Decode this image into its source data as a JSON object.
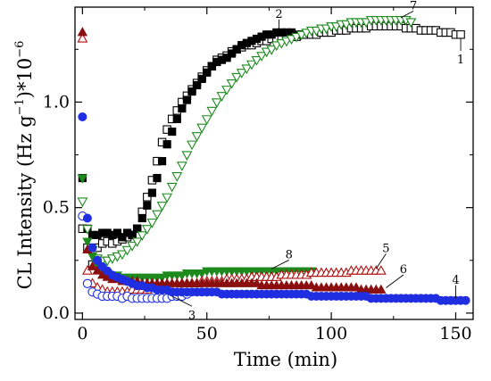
{
  "chart_data": {
    "type": "scatter",
    "title": "",
    "xlabel": "Time (min)",
    "ylabel": "CL Intensity (Hz g",
    "ylabel_sup": "−1",
    "ylabel_tail": ")*10",
    "ylabel_exp": "−6",
    "xlim": [
      -3,
      157
    ],
    "ylim": [
      -0.03,
      1.45
    ],
    "x_ticks": [
      0,
      50,
      100,
      150
    ],
    "x_tick_labels": [
      "0",
      "50",
      "100",
      "150"
    ],
    "y_ticks": [
      0.0,
      0.5,
      1.0
    ],
    "y_tick_labels": [
      "0.0",
      "0.5",
      "1.0"
    ],
    "grid": false,
    "legend": "none",
    "series": [
      {
        "name": "1",
        "marker": "square",
        "filled": false,
        "color": "#000000",
        "x": [
          0,
          2,
          4,
          6,
          8,
          10,
          12,
          14,
          16,
          18,
          20,
          22,
          24,
          26,
          28,
          30,
          32,
          34,
          36,
          38,
          40,
          42,
          44,
          46,
          48,
          50,
          52,
          54,
          56,
          58,
          60,
          62,
          64,
          66,
          68,
          70,
          72,
          74,
          76,
          78,
          80,
          82,
          84,
          86,
          88,
          90,
          92,
          94,
          96,
          98,
          100,
          102,
          104,
          106,
          108,
          110,
          112,
          114,
          116,
          118,
          120,
          122,
          124,
          126,
          128,
          130,
          132,
          134,
          136,
          138,
          140,
          142,
          144,
          146,
          148,
          150,
          152
        ],
        "y": [
          0.4,
          0.31,
          0.23,
          0.31,
          0.33,
          0.34,
          0.33,
          0.34,
          0.35,
          0.36,
          0.37,
          0.4,
          0.48,
          0.55,
          0.63,
          0.72,
          0.81,
          0.87,
          0.92,
          0.96,
          1.0,
          1.03,
          1.06,
          1.09,
          1.12,
          1.15,
          1.17,
          1.2,
          1.21,
          1.22,
          1.24,
          1.25,
          1.26,
          1.27,
          1.27,
          1.28,
          1.29,
          1.29,
          1.3,
          1.3,
          1.3,
          1.31,
          1.31,
          1.31,
          1.32,
          1.32,
          1.32,
          1.32,
          1.33,
          1.33,
          1.33,
          1.34,
          1.34,
          1.34,
          1.35,
          1.35,
          1.35,
          1.35,
          1.36,
          1.36,
          1.36,
          1.36,
          1.36,
          1.36,
          1.36,
          1.35,
          1.35,
          1.35,
          1.34,
          1.34,
          1.34,
          1.34,
          1.33,
          1.33,
          1.33,
          1.32,
          1.32
        ]
      },
      {
        "name": "2",
        "marker": "square",
        "filled": true,
        "color": "#000000",
        "x": [
          0,
          2,
          4,
          6,
          8,
          10,
          12,
          14,
          16,
          18,
          20,
          22,
          24,
          26,
          28,
          30,
          32,
          34,
          36,
          38,
          40,
          42,
          44,
          46,
          48,
          50,
          52,
          54,
          56,
          58,
          60,
          62,
          64,
          66,
          68,
          70,
          72,
          74,
          76,
          78,
          80,
          82,
          84,
          86
        ],
        "y": [
          0.64,
          0.4,
          0.37,
          0.37,
          0.38,
          0.38,
          0.37,
          0.38,
          0.36,
          0.38,
          0.37,
          0.4,
          0.45,
          0.51,
          0.57,
          0.64,
          0.72,
          0.8,
          0.86,
          0.92,
          0.97,
          1.01,
          1.05,
          1.08,
          1.11,
          1.14,
          1.17,
          1.19,
          1.2,
          1.21,
          1.23,
          1.25,
          1.27,
          1.28,
          1.29,
          1.3,
          1.31,
          1.32,
          1.32,
          1.33,
          1.33,
          1.33,
          1.33,
          1.32
        ]
      },
      {
        "name": "3",
        "marker": "circle",
        "filled": false,
        "color": "#1f2ee0",
        "x": [
          0,
          2,
          4,
          6,
          8,
          10,
          12,
          14,
          16,
          18,
          20,
          22,
          24,
          26,
          28,
          30,
          32,
          34,
          36,
          38,
          40,
          42
        ],
        "y": [
          0.46,
          0.14,
          0.1,
          0.09,
          0.08,
          0.08,
          0.08,
          0.08,
          0.07,
          0.08,
          0.07,
          0.07,
          0.07,
          0.07,
          0.07,
          0.07,
          0.07,
          0.07,
          0.08,
          0.08,
          0.08,
          0.09
        ]
      },
      {
        "name": "4",
        "marker": "circle",
        "filled": true,
        "color": "#1f2ee0",
        "x": [
          0,
          2,
          4,
          6,
          8,
          10,
          12,
          14,
          16,
          18,
          20,
          22,
          24,
          26,
          28,
          30,
          32,
          34,
          36,
          38,
          40,
          42,
          44,
          46,
          48,
          50,
          52,
          54,
          56,
          58,
          60,
          62,
          64,
          66,
          68,
          70,
          72,
          74,
          76,
          78,
          80,
          82,
          84,
          86,
          88,
          90,
          92,
          94,
          96,
          98,
          100,
          102,
          104,
          106,
          108,
          110,
          112,
          114,
          116,
          118,
          120,
          122,
          124,
          126,
          128,
          130,
          132,
          134,
          136,
          138,
          140,
          142,
          144,
          146,
          148,
          150,
          152,
          154
        ],
        "y": [
          0.93,
          0.45,
          0.31,
          0.25,
          0.22,
          0.2,
          0.18,
          0.17,
          0.16,
          0.15,
          0.14,
          0.13,
          0.13,
          0.12,
          0.12,
          0.11,
          0.11,
          0.11,
          0.1,
          0.1,
          0.1,
          0.1,
          0.1,
          0.1,
          0.1,
          0.1,
          0.1,
          0.1,
          0.09,
          0.09,
          0.09,
          0.09,
          0.09,
          0.09,
          0.09,
          0.09,
          0.09,
          0.09,
          0.09,
          0.09,
          0.09,
          0.09,
          0.09,
          0.09,
          0.09,
          0.09,
          0.08,
          0.08,
          0.08,
          0.08,
          0.08,
          0.08,
          0.08,
          0.08,
          0.08,
          0.08,
          0.08,
          0.08,
          0.07,
          0.07,
          0.07,
          0.07,
          0.07,
          0.07,
          0.07,
          0.07,
          0.07,
          0.07,
          0.07,
          0.07,
          0.07,
          0.07,
          0.06,
          0.06,
          0.06,
          0.06,
          0.06,
          0.06
        ]
      },
      {
        "name": "5",
        "marker": "triangle-up",
        "filled": false,
        "color": "#b01010",
        "x": [
          0,
          2,
          4,
          6,
          8,
          10,
          12,
          14,
          16,
          18,
          20,
          22,
          24,
          26,
          28,
          30,
          32,
          34,
          36,
          38,
          40,
          42,
          44,
          46,
          48,
          50,
          52,
          54,
          56,
          58,
          60,
          62,
          64,
          66,
          68,
          70,
          72,
          74,
          76,
          78,
          80,
          82,
          84,
          86,
          88,
          90,
          92,
          94,
          96,
          98,
          100,
          102,
          104,
          106,
          108,
          110,
          112,
          114,
          116,
          118,
          120
        ],
        "y": [
          1.3,
          0.2,
          0.14,
          0.12,
          0.11,
          0.1,
          0.1,
          0.1,
          0.1,
          0.1,
          0.11,
          0.11,
          0.11,
          0.11,
          0.12,
          0.12,
          0.12,
          0.13,
          0.13,
          0.13,
          0.14,
          0.14,
          0.14,
          0.14,
          0.15,
          0.15,
          0.15,
          0.15,
          0.15,
          0.16,
          0.16,
          0.16,
          0.16,
          0.16,
          0.17,
          0.17,
          0.17,
          0.17,
          0.17,
          0.17,
          0.18,
          0.18,
          0.18,
          0.18,
          0.18,
          0.18,
          0.19,
          0.19,
          0.19,
          0.19,
          0.19,
          0.19,
          0.19,
          0.19,
          0.2,
          0.2,
          0.2,
          0.2,
          0.2,
          0.2,
          0.2
        ]
      },
      {
        "name": "6",
        "marker": "triangle-up",
        "filled": true,
        "color": "#8b0f0f",
        "x": [
          0,
          2,
          4,
          6,
          8,
          10,
          12,
          14,
          16,
          18,
          20,
          22,
          24,
          26,
          28,
          30,
          32,
          34,
          36,
          38,
          40,
          42,
          44,
          46,
          48,
          50,
          52,
          54,
          56,
          58,
          60,
          62,
          64,
          66,
          68,
          70,
          72,
          74,
          76,
          78,
          80,
          82,
          84,
          86,
          88,
          90,
          92,
          94,
          96,
          98,
          100,
          102,
          104,
          106,
          108,
          110,
          112,
          114,
          116,
          118,
          120
        ],
        "y": [
          1.33,
          0.3,
          0.22,
          0.2,
          0.18,
          0.17,
          0.16,
          0.16,
          0.15,
          0.15,
          0.15,
          0.15,
          0.14,
          0.14,
          0.14,
          0.14,
          0.14,
          0.14,
          0.14,
          0.14,
          0.14,
          0.14,
          0.14,
          0.14,
          0.14,
          0.14,
          0.14,
          0.14,
          0.14,
          0.14,
          0.14,
          0.14,
          0.14,
          0.14,
          0.14,
          0.14,
          0.13,
          0.13,
          0.13,
          0.13,
          0.13,
          0.13,
          0.13,
          0.13,
          0.13,
          0.13,
          0.13,
          0.12,
          0.12,
          0.12,
          0.12,
          0.12,
          0.12,
          0.12,
          0.12,
          0.12,
          0.11,
          0.11,
          0.11,
          0.11,
          0.11
        ]
      },
      {
        "name": "7",
        "marker": "triangle-down",
        "filled": false,
        "color": "#1e8a1e",
        "x": [
          0,
          2,
          4,
          6,
          8,
          10,
          12,
          14,
          16,
          18,
          20,
          22,
          24,
          26,
          28,
          30,
          32,
          34,
          36,
          38,
          40,
          42,
          44,
          46,
          48,
          50,
          52,
          54,
          56,
          58,
          60,
          62,
          64,
          66,
          68,
          70,
          72,
          74,
          76,
          78,
          80,
          82,
          84,
          86,
          88,
          90,
          92,
          94,
          96,
          98,
          100,
          102,
          104,
          106,
          108,
          110,
          112,
          114,
          116,
          118,
          120,
          122,
          124,
          126,
          128,
          130,
          132
        ],
        "y": [
          0.53,
          0.4,
          0.3,
          0.26,
          0.25,
          0.25,
          0.26,
          0.27,
          0.28,
          0.3,
          0.32,
          0.34,
          0.37,
          0.4,
          0.43,
          0.47,
          0.51,
          0.55,
          0.6,
          0.65,
          0.7,
          0.75,
          0.8,
          0.84,
          0.88,
          0.92,
          0.96,
          1.0,
          1.03,
          1.06,
          1.09,
          1.12,
          1.14,
          1.16,
          1.18,
          1.2,
          1.22,
          1.24,
          1.25,
          1.27,
          1.28,
          1.29,
          1.3,
          1.31,
          1.32,
          1.33,
          1.34,
          1.34,
          1.35,
          1.35,
          1.36,
          1.36,
          1.37,
          1.37,
          1.38,
          1.38,
          1.38,
          1.38,
          1.39,
          1.39,
          1.39,
          1.39,
          1.39,
          1.39,
          1.39,
          1.39,
          1.38
        ]
      },
      {
        "name": "8",
        "marker": "triangle-down",
        "filled": true,
        "color": "#1e8a1e",
        "x": [
          0,
          2,
          4,
          6,
          8,
          10,
          12,
          14,
          16,
          18,
          20,
          22,
          24,
          26,
          28,
          30,
          32,
          34,
          36,
          38,
          40,
          42,
          44,
          46,
          48,
          50,
          52,
          54,
          56,
          58,
          60,
          62,
          64,
          66,
          68,
          70,
          72,
          74,
          76,
          78,
          80,
          82,
          84,
          86,
          88,
          90,
          92
        ],
        "y": [
          0.64,
          0.34,
          0.27,
          0.23,
          0.21,
          0.19,
          0.18,
          0.18,
          0.17,
          0.17,
          0.17,
          0.17,
          0.17,
          0.17,
          0.17,
          0.17,
          0.17,
          0.18,
          0.18,
          0.18,
          0.18,
          0.19,
          0.19,
          0.19,
          0.19,
          0.2,
          0.2,
          0.2,
          0.2,
          0.2,
          0.2,
          0.2,
          0.2,
          0.2,
          0.2,
          0.2,
          0.2,
          0.2,
          0.2,
          0.2,
          0.2,
          0.2,
          0.2,
          0.2,
          0.2,
          0.2,
          0.2
        ]
      }
    ],
    "annotations": [
      {
        "text": "1",
        "x": 152,
        "y": 1.2,
        "pointer_x": 152,
        "pointer_y": 1.3
      },
      {
        "text": "2",
        "x": 79,
        "y": 1.4,
        "pointer_x": 79,
        "pointer_y": 1.34
      },
      {
        "text": "3",
        "x": 44,
        "y": -0.01,
        "pointer_x": 36,
        "pointer_y": 0.08
      },
      {
        "text": "4",
        "x": 150,
        "y": 0.14,
        "pointer_x": 150,
        "pointer_y": 0.07
      },
      {
        "text": "5",
        "x": 122,
        "y": 0.29,
        "pointer_x": 118,
        "pointer_y": 0.21
      },
      {
        "text": "6",
        "x": 129,
        "y": 0.19,
        "pointer_x": 122,
        "pointer_y": 0.12
      },
      {
        "text": "7",
        "x": 133,
        "y": 1.44,
        "pointer_x": 128,
        "pointer_y": 1.4
      },
      {
        "text": "8",
        "x": 83,
        "y": 0.26,
        "pointer_x": 76,
        "pointer_y": 0.21
      }
    ]
  }
}
